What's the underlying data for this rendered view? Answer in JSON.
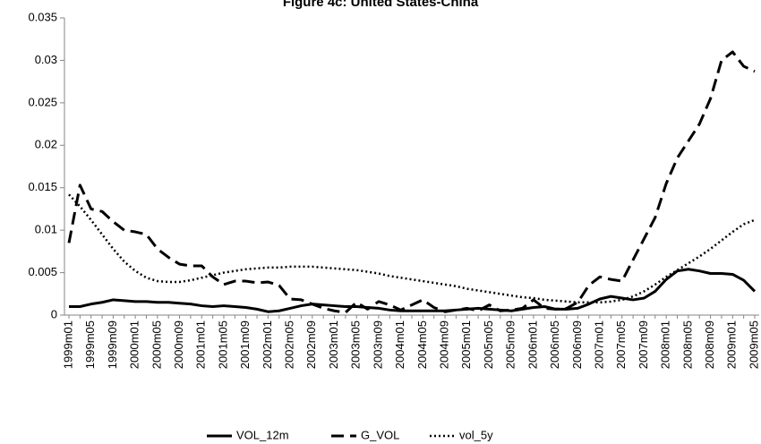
{
  "chart_data": {
    "type": "line",
    "title": "Figure 4c: United States-China",
    "categories": [
      "1999m01",
      null,
      "1999m05",
      null,
      "1999m09",
      null,
      "2000m01",
      null,
      "2000m05",
      null,
      "2000m09",
      null,
      "2001m01",
      null,
      "2001m05",
      null,
      "2001m09",
      null,
      "2002m01",
      null,
      "2002m05",
      null,
      "2002m09",
      null,
      "2003m01",
      null,
      "2003m05",
      null,
      "2003m09",
      null,
      "2004m01",
      null,
      "2004m05",
      null,
      "2004m09",
      null,
      "2005m01",
      null,
      "2005m05",
      null,
      "2005m09",
      null,
      "2006m01",
      null,
      "2006m05",
      null,
      "2006m09",
      null,
      "2007m01",
      null,
      "2007m05",
      null,
      "2007m09",
      null,
      "2008m01",
      null,
      "2008m05",
      null,
      "2008m09",
      null,
      "2009m01",
      null,
      "2009m05"
    ],
    "series": [
      {
        "name": "VOL_12m",
        "color": "#000000",
        "style": "solid",
        "values": [
          0.001,
          0.001,
          0.0013,
          0.0015,
          0.0018,
          0.0017,
          0.0016,
          0.0016,
          0.0015,
          0.0015,
          0.0014,
          0.0013,
          0.0011,
          0.001,
          0.0011,
          0.001,
          0.0009,
          0.0007,
          0.0004,
          0.0005,
          0.0008,
          0.0011,
          0.0013,
          0.0012,
          0.0011,
          0.001,
          0.001,
          0.0009,
          0.0008,
          0.0006,
          0.0005,
          0.0005,
          0.0005,
          0.0005,
          0.0005,
          0.0006,
          0.0007,
          0.0008,
          0.0007,
          0.0006,
          0.0005,
          0.0007,
          0.0009,
          0.001,
          0.0007,
          0.0007,
          0.0008,
          0.0013,
          0.0019,
          0.0022,
          0.002,
          0.0018,
          0.002,
          0.0028,
          0.0042,
          0.0052,
          0.0054,
          0.0052,
          0.0049,
          0.0049,
          0.0048,
          0.0041,
          0.0028
        ]
      },
      {
        "name": "G_VOL",
        "color": "#000000",
        "style": "dashed",
        "values": [
          0.0085,
          0.0153,
          0.0125,
          0.0122,
          0.011,
          0.01,
          0.0098,
          0.0095,
          0.0078,
          0.0068,
          0.006,
          0.0058,
          0.0058,
          0.0045,
          0.0036,
          0.004,
          0.004,
          0.0038,
          0.0039,
          0.0035,
          0.0019,
          0.0018,
          0.0013,
          0.0008,
          0.0005,
          0.0003,
          0.0015,
          0.0007,
          0.0016,
          0.0012,
          0.0006,
          0.0012,
          0.0018,
          0.0009,
          0.0004,
          0.0006,
          0.0008,
          0.0005,
          0.0012,
          0.0005,
          0.0006,
          0.0008,
          0.0018,
          0.0008,
          0.0007,
          0.0008,
          0.0015,
          0.0035,
          0.0045,
          0.0042,
          0.004,
          0.0065,
          0.009,
          0.0115,
          0.0155,
          0.0185,
          0.0205,
          0.0225,
          0.0255,
          0.03,
          0.031,
          0.0293,
          0.0287
        ]
      },
      {
        "name": "vol_5y",
        "color": "#000000",
        "style": "dotted",
        "values": [
          0.0142,
          0.0128,
          0.0112,
          0.0095,
          0.0078,
          0.0063,
          0.0052,
          0.0044,
          0.004,
          0.0039,
          0.0039,
          0.0041,
          0.0044,
          0.0047,
          0.005,
          0.0052,
          0.0054,
          0.0055,
          0.0056,
          0.0056,
          0.0057,
          0.0057,
          0.0057,
          0.0056,
          0.0055,
          0.0054,
          0.0053,
          0.0051,
          0.0049,
          0.0046,
          0.0044,
          0.0042,
          0.004,
          0.0038,
          0.0036,
          0.0034,
          0.0031,
          0.0029,
          0.0027,
          0.0025,
          0.0023,
          0.0021,
          0.002,
          0.0018,
          0.0017,
          0.0016,
          0.0015,
          0.0015,
          0.0015,
          0.0016,
          0.0018,
          0.0022,
          0.0028,
          0.0036,
          0.0045,
          0.0053,
          0.0061,
          0.0069,
          0.0078,
          0.0088,
          0.0098,
          0.0107,
          0.0112
        ]
      }
    ],
    "ylim": [
      0,
      0.035
    ],
    "yticks": [
      0,
      0.005,
      0.01,
      0.015,
      0.02,
      0.025,
      0.03,
      0.035
    ],
    "grid": false,
    "legend": "bottom"
  }
}
